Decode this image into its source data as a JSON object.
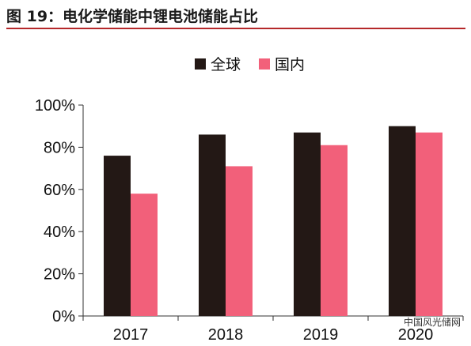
{
  "figure": {
    "title": "图 19：电化学储能中锂电池储能占比"
  },
  "watermark": "中国风光储网",
  "colors": {
    "title_rule": "#b5282a",
    "series_global": "#231815",
    "series_domestic": "#f2607a"
  },
  "chart_data": {
    "type": "bar",
    "categories": [
      "2017",
      "2018",
      "2019",
      "2020"
    ],
    "series": [
      {
        "name": "全球",
        "values": [
          76,
          86,
          87,
          90
        ]
      },
      {
        "name": "国内",
        "values": [
          58,
          71,
          81,
          87
        ]
      }
    ],
    "ylim": [
      0,
      100
    ],
    "yticks": [
      "0%",
      "20%",
      "40%",
      "60%",
      "80%",
      "100%"
    ],
    "xlabel": "",
    "ylabel": "",
    "grid": false,
    "legend_position": "top-center"
  }
}
